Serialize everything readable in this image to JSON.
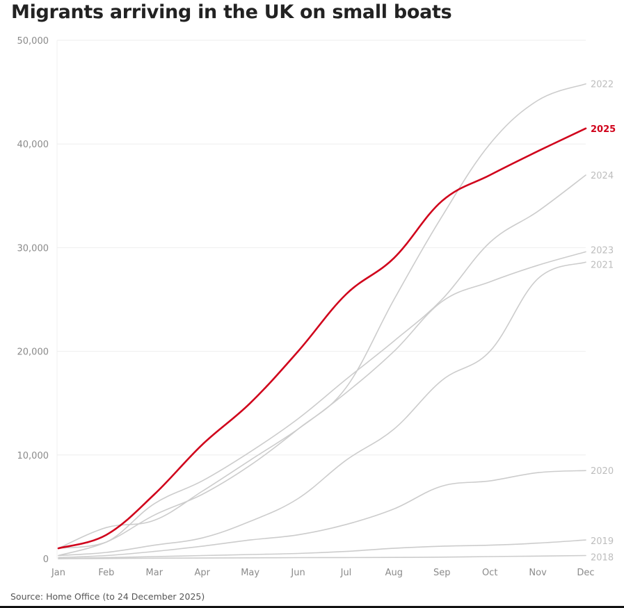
{
  "chart_data": {
    "type": "line",
    "title": "Migrants arriving in the UK on small boats",
    "source": "Source: Home Office (to 24 December 2025)",
    "xlabel": "",
    "ylabel": "",
    "x": [
      "Jan",
      "Feb",
      "Mar",
      "Apr",
      "May",
      "Jun",
      "Jul",
      "Aug",
      "Sep",
      "Oct",
      "Nov",
      "Dec"
    ],
    "ylim": [
      0,
      50000
    ],
    "yticks": [
      0,
      10000,
      20000,
      30000,
      40000,
      50000
    ],
    "ytick_labels": [
      "0",
      "10,000",
      "20,000",
      "30,000",
      "40,000",
      "50,000"
    ],
    "grid": true,
    "legend": "direct labels at line ends (right)",
    "highlight_color": "#d0021b",
    "base_color": "#cccccc",
    "series": [
      {
        "name": "2018",
        "highlight": false,
        "values": [
          0,
          20,
          50,
          60,
          80,
          100,
          110,
          120,
          150,
          200,
          250,
          300
        ]
      },
      {
        "name": "2019",
        "highlight": false,
        "values": [
          0,
          100,
          200,
          300,
          400,
          500,
          700,
          1000,
          1200,
          1300,
          1500,
          1800
        ]
      },
      {
        "name": "2020",
        "highlight": false,
        "values": [
          100,
          300,
          700,
          1200,
          1800,
          2300,
          3300,
          4800,
          7000,
          7500,
          8300,
          8500
        ]
      },
      {
        "name": "2021",
        "highlight": false,
        "values": [
          300,
          600,
          1300,
          2000,
          3600,
          5800,
          9500,
          12500,
          17200,
          20000,
          27000,
          28600
        ]
      },
      {
        "name": "2023",
        "highlight": false,
        "values": [
          1000,
          3000,
          3700,
          6500,
          9500,
          12500,
          16000,
          20000,
          24800,
          26700,
          28300,
          29600
        ]
      },
      {
        "name": "2024",
        "highlight": false,
        "values": [
          1000,
          1600,
          5300,
          7500,
          10300,
          13500,
          17300,
          21000,
          25000,
          30500,
          33500,
          37000
        ]
      },
      {
        "name": "2022",
        "highlight": false,
        "values": [
          300,
          1600,
          4200,
          6200,
          9000,
          12500,
          16500,
          25000,
          33000,
          40000,
          44200,
          45800
        ]
      },
      {
        "name": "2025",
        "highlight": true,
        "values": [
          1000,
          2300,
          6200,
          11000,
          15000,
          20000,
          25500,
          29000,
          34500,
          37000,
          39300,
          41500
        ]
      }
    ]
  }
}
